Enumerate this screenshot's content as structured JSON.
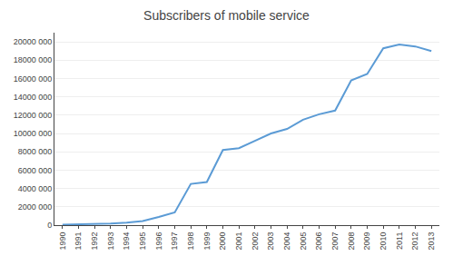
{
  "chart_data": {
    "type": "line",
    "title": "Subscribers of mobile service",
    "x": [
      1990,
      1991,
      1992,
      1993,
      1994,
      1995,
      1996,
      1997,
      1998,
      1999,
      2000,
      2001,
      2002,
      2003,
      2004,
      2005,
      2006,
      2007,
      2008,
      2009,
      2010,
      2011,
      2012,
      2013
    ],
    "values": [
      50000,
      80000,
      120000,
      180000,
      280000,
      450000,
      900000,
      1400000,
      4500000,
      4700000,
      8200000,
      8400000,
      9200000,
      10000000,
      10500000,
      11500000,
      12100000,
      12500000,
      15800000,
      16500000,
      19300000,
      19700000,
      19500000,
      19000000
    ],
    "color": "#5b9bd5",
    "xlim": [
      1989.5,
      2013.5
    ],
    "xticks": [
      1990,
      1991,
      1992,
      1993,
      1994,
      1995,
      1996,
      1997,
      1998,
      1999,
      2000,
      2001,
      2002,
      2003,
      2004,
      2005,
      2006,
      2007,
      2008,
      2009,
      2010,
      2011,
      2012,
      2013
    ],
    "ylim": [
      0,
      21000000
    ],
    "yticks": [
      0,
      {
        "value": 2000000,
        "label": "2000 000"
      },
      {
        "value": 4000000,
        "label": "4000 000"
      },
      {
        "value": 6000000,
        "label": "6000 000"
      },
      {
        "value": 8000000,
        "label": "8000 000"
      },
      {
        "value": 10000000,
        "label": "10000 000"
      },
      {
        "value": 12000000,
        "label": "12000 000"
      },
      {
        "value": 14000000,
        "label": "14000 000"
      },
      {
        "value": 16000000,
        "label": "16000 000"
      },
      {
        "value": 18000000,
        "label": "18000 000"
      },
      {
        "value": 20000000,
        "label": "20000 000"
      }
    ],
    "grid": true
  }
}
